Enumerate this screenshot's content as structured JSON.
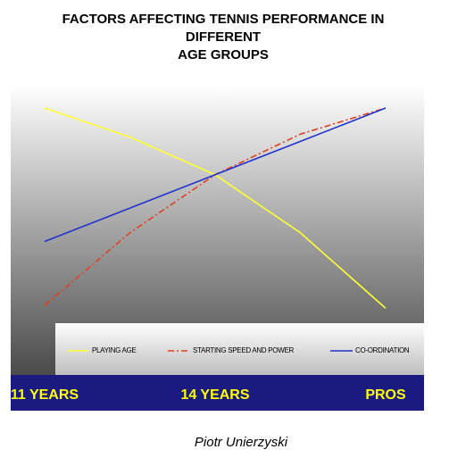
{
  "chart_data": {
    "type": "line",
    "title": [
      "FACTORS AFFECTING TENNIS PERFORMANCE IN",
      "DIFFERENT",
      "AGE GROUPS"
    ],
    "categories": [
      "11 YEARS",
      null,
      "14 YEARS",
      null,
      "PROS"
    ],
    "series": [
      {
        "name": "PLAYING AGE",
        "color": "#ffff33",
        "style": "solid",
        "values": [
          92,
          82,
          69,
          49,
          23
        ]
      },
      {
        "name": "STARTING SPEED AND POWER",
        "color": "#e04020",
        "style": "dashdot",
        "values": [
          24,
          49,
          69,
          83,
          92
        ]
      },
      {
        "name": "CO-ORDINATION",
        "color": "#2233cc",
        "style": "solid",
        "values": [
          46,
          57.5,
          69,
          80.5,
          92
        ]
      }
    ],
    "ylim": [
      0,
      100
    ],
    "author": "Piotr Unierzyski"
  }
}
